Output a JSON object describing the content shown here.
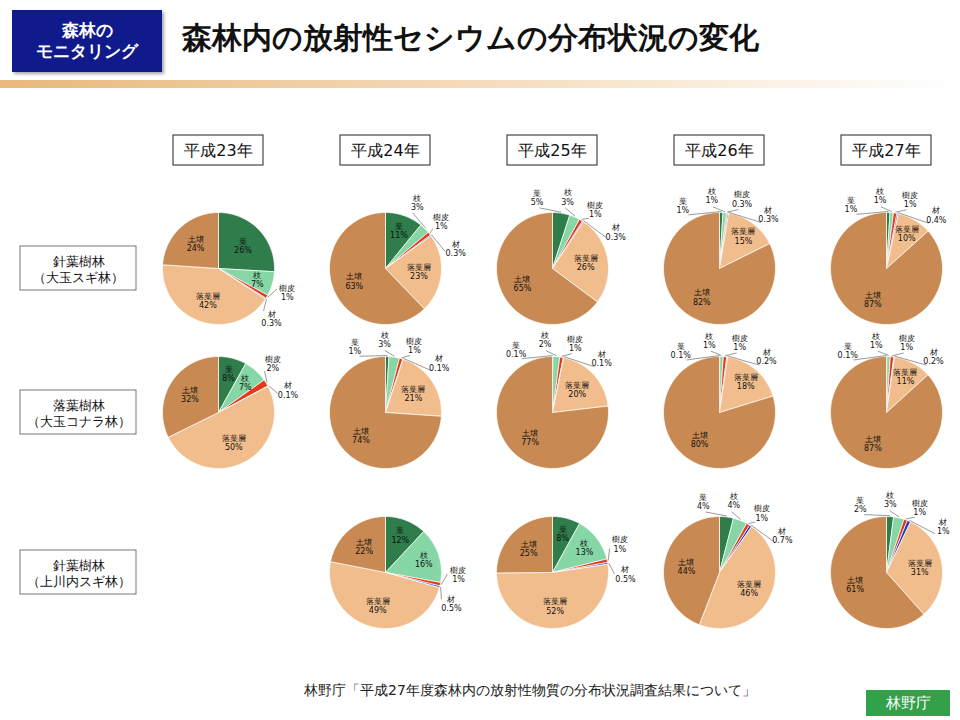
{
  "tag": [
    "森林の",
    "モニタリング"
  ],
  "title": "森林内の放射性セシウムの分布状況の変化",
  "columns": [
    "平成23年",
    "平成24年",
    "平成25年",
    "平成26年",
    "平成27年"
  ],
  "rows": [
    [
      "針葉樹林",
      "（大玉スギ林）"
    ],
    [
      "落葉樹林",
      "（大玉コナラ林）"
    ],
    [
      "針葉樹林",
      "（上川内スギ林）"
    ]
  ],
  "source": "林野庁「平成27年度森林内の放射性物質の分布状況調査結果について」",
  "publisher": "林野庁",
  "chart_data": [
    {
      "type": "pie",
      "row": "針葉樹林（大玉スギ林）",
      "year": "平成23年",
      "data_labels": true,
      "categories": [
        "葉",
        "枝",
        "樹皮",
        "材",
        "落葉層",
        "土壌"
      ],
      "values": [
        26,
        7,
        1,
        0.3,
        42,
        24
      ],
      "value_labels": [
        "26%",
        "7%",
        "1%",
        "0.3%",
        "42%",
        "24%"
      ],
      "colors": [
        "#2e7d4b",
        "#86d6a6",
        "#e8381a",
        "#1f3fbf",
        "#f2bd8c",
        "#c88a52"
      ]
    },
    {
      "type": "pie",
      "row": "針葉樹林（大玉スギ林）",
      "year": "平成24年",
      "data_labels": true,
      "categories": [
        "葉",
        "枝",
        "樹皮",
        "材",
        "落葉層",
        "土壌"
      ],
      "values": [
        11,
        3,
        1,
        0.3,
        23,
        63
      ],
      "value_labels": [
        "11%",
        "3%",
        "1%",
        "0.3%",
        "23%",
        "63%"
      ],
      "colors": [
        "#2e7d4b",
        "#86d6a6",
        "#e8381a",
        "#1f3fbf",
        "#f2bd8c",
        "#c88a52"
      ]
    },
    {
      "type": "pie",
      "row": "針葉樹林（大玉スギ林）",
      "year": "平成25年",
      "data_labels": true,
      "categories": [
        "葉",
        "枝",
        "樹皮",
        "材",
        "落葉層",
        "土壌"
      ],
      "values": [
        5,
        3,
        1,
        0.3,
        26,
        65
      ],
      "value_labels": [
        "5%",
        "3%",
        "1%",
        "0.3%",
        "26%",
        "65%"
      ],
      "colors": [
        "#2e7d4b",
        "#86d6a6",
        "#e8381a",
        "#1f3fbf",
        "#f2bd8c",
        "#c88a52"
      ]
    },
    {
      "type": "pie",
      "row": "針葉樹林（大玉スギ林）",
      "year": "平成26年",
      "data_labels": true,
      "categories": [
        "葉",
        "枝",
        "樹皮",
        "材",
        "落葉層",
        "土壌"
      ],
      "values": [
        1,
        1,
        0.3,
        0.3,
        15,
        82
      ],
      "value_labels": [
        "1%",
        "1%",
        "0.3%",
        "0.3%",
        "15%",
        "82%"
      ],
      "colors": [
        "#2e7d4b",
        "#86d6a6",
        "#e8381a",
        "#1f3fbf",
        "#f2bd8c",
        "#c88a52"
      ]
    },
    {
      "type": "pie",
      "row": "針葉樹林（大玉スギ林）",
      "year": "平成27年",
      "data_labels": true,
      "categories": [
        "葉",
        "枝",
        "樹皮",
        "材",
        "落葉層",
        "土壌"
      ],
      "values": [
        1,
        1,
        1,
        0.4,
        10,
        87
      ],
      "value_labels": [
        "1%",
        "1%",
        "1%",
        "0.4%",
        "10%",
        "87%"
      ],
      "colors": [
        "#2e7d4b",
        "#86d6a6",
        "#e8381a",
        "#1f3fbf",
        "#f2bd8c",
        "#c88a52"
      ]
    },
    {
      "type": "pie",
      "row": "落葉樹林（大玉コナラ林）",
      "year": "平成23年",
      "data_labels": true,
      "categories": [
        "葉",
        "枝",
        "樹皮",
        "材",
        "落葉層",
        "土壌"
      ],
      "values": [
        8,
        7,
        2,
        0.1,
        50,
        32
      ],
      "value_labels": [
        "8%",
        "7%",
        "2%",
        "0.1%",
        "50%",
        "32%"
      ],
      "colors": [
        "#2e7d4b",
        "#86d6a6",
        "#e8381a",
        "#1f3fbf",
        "#f2bd8c",
        "#c88a52"
      ]
    },
    {
      "type": "pie",
      "row": "落葉樹林（大玉コナラ林）",
      "year": "平成24年",
      "data_labels": true,
      "categories": [
        "葉",
        "枝",
        "樹皮",
        "材",
        "落葉層",
        "土壌"
      ],
      "values": [
        1,
        3,
        1,
        0.1,
        21,
        74
      ],
      "value_labels": [
        "1%",
        "3%",
        "1%",
        "0.1%",
        "21%",
        "74%"
      ],
      "colors": [
        "#2e7d4b",
        "#86d6a6",
        "#e8381a",
        "#1f3fbf",
        "#f2bd8c",
        "#c88a52"
      ]
    },
    {
      "type": "pie",
      "row": "落葉樹林（大玉コナラ林）",
      "year": "平成25年",
      "data_labels": true,
      "categories": [
        "葉",
        "枝",
        "樹皮",
        "材",
        "落葉層",
        "土壌"
      ],
      "values": [
        0.1,
        2,
        1,
        0.1,
        20,
        77
      ],
      "value_labels": [
        "0.1%",
        "2%",
        "1%",
        "0.1%",
        "20%",
        "77%"
      ],
      "colors": [
        "#2e7d4b",
        "#86d6a6",
        "#e8381a",
        "#1f3fbf",
        "#f2bd8c",
        "#c88a52"
      ]
    },
    {
      "type": "pie",
      "row": "落葉樹林（大玉コナラ林）",
      "year": "平成26年",
      "data_labels": true,
      "categories": [
        "葉",
        "枝",
        "樹皮",
        "材",
        "落葉層",
        "土壌"
      ],
      "values": [
        0.1,
        1,
        1,
        0.2,
        18,
        80
      ],
      "value_labels": [
        "0.1%",
        "1%",
        "1%",
        "0.2%",
        "18%",
        "80%"
      ],
      "colors": [
        "#2e7d4b",
        "#86d6a6",
        "#e8381a",
        "#1f3fbf",
        "#f2bd8c",
        "#c88a52"
      ]
    },
    {
      "type": "pie",
      "row": "落葉樹林（大玉コナラ林）",
      "year": "平成27年",
      "data_labels": true,
      "categories": [
        "葉",
        "枝",
        "樹皮",
        "材",
        "落葉層",
        "土壌"
      ],
      "values": [
        0.1,
        1,
        1,
        0.2,
        11,
        87
      ],
      "value_labels": [
        "0.1%",
        "1%",
        "1%",
        "0.2%",
        "11%",
        "87%"
      ],
      "colors": [
        "#2e7d4b",
        "#86d6a6",
        "#e8381a",
        "#1f3fbf",
        "#f2bd8c",
        "#c88a52"
      ]
    },
    {
      "type": "pie",
      "row": "針葉樹林（上川内スギ林）",
      "year": "平成24年",
      "data_labels": true,
      "categories": [
        "葉",
        "枝",
        "樹皮",
        "材",
        "落葉層",
        "土壌"
      ],
      "values": [
        12,
        16,
        1,
        0.5,
        49,
        22
      ],
      "value_labels": [
        "12%",
        "16%",
        "1%",
        "0.5%",
        "49%",
        "22%"
      ],
      "colors": [
        "#2e7d4b",
        "#86d6a6",
        "#e8381a",
        "#1f3fbf",
        "#f2bd8c",
        "#c88a52"
      ]
    },
    {
      "type": "pie",
      "row": "針葉樹林（上川内スギ林）",
      "year": "平成25年",
      "data_labels": true,
      "categories": [
        "葉",
        "枝",
        "樹皮",
        "材",
        "落葉層",
        "土壌"
      ],
      "values": [
        8,
        13,
        1,
        0.5,
        52,
        25
      ],
      "value_labels": [
        "8%",
        "13%",
        "1%",
        "0.5%",
        "52%",
        "25%"
      ],
      "colors": [
        "#2e7d4b",
        "#86d6a6",
        "#e8381a",
        "#1f3fbf",
        "#f2bd8c",
        "#c88a52"
      ]
    },
    {
      "type": "pie",
      "row": "針葉樹林（上川内スギ林）",
      "year": "平成26年",
      "data_labels": true,
      "categories": [
        "葉",
        "枝",
        "樹皮",
        "材",
        "落葉層",
        "土壌"
      ],
      "values": [
        4,
        4,
        1,
        0.7,
        46,
        44
      ],
      "value_labels": [
        "4%",
        "4%",
        "1%",
        "0.7%",
        "46%",
        "44%"
      ],
      "colors": [
        "#2e7d4b",
        "#86d6a6",
        "#e8381a",
        "#1f3fbf",
        "#f2bd8c",
        "#c88a52"
      ]
    },
    {
      "type": "pie",
      "row": "針葉樹林（上川内スギ林）",
      "year": "平成27年",
      "data_labels": true,
      "categories": [
        "葉",
        "枝",
        "樹皮",
        "材",
        "落葉層",
        "土壌"
      ],
      "values": [
        2,
        3,
        1,
        1,
        31,
        61
      ],
      "value_labels": [
        "2%",
        "3%",
        "1%",
        "1%",
        "31%",
        "61%"
      ],
      "colors": [
        "#2e7d4b",
        "#86d6a6",
        "#e8381a",
        "#1f3fbf",
        "#f2bd8c",
        "#c88a52"
      ]
    }
  ]
}
